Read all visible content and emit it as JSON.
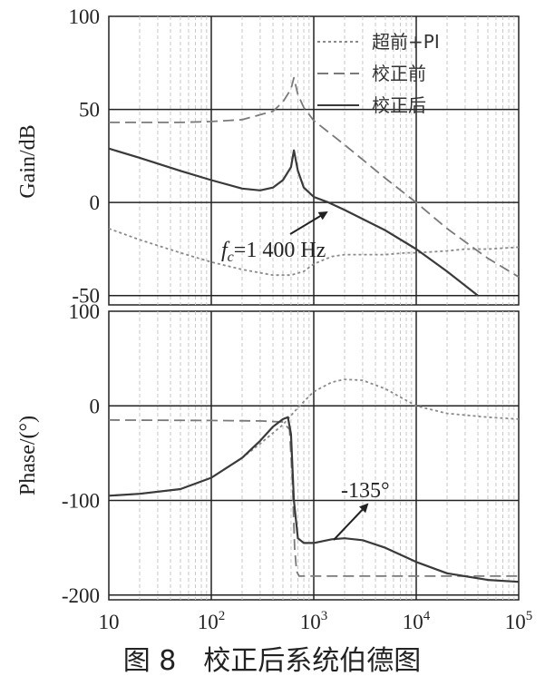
{
  "caption": "图 8　校正后系统伯德图",
  "chart_data": [
    {
      "type": "line",
      "panel": "gain",
      "ylabel": "Gain/dB",
      "xscale": "log",
      "xlim": [
        10,
        100000
      ],
      "ylim": [
        -55,
        100
      ],
      "yticks": [
        100,
        50,
        0,
        -50
      ],
      "ytick_labels": [
        "100",
        "50",
        "0",
        "-50"
      ],
      "grid": true,
      "legend_position": "top-right",
      "series": [
        {
          "name": "超前+PI",
          "style": "dotted",
          "color": "#8a8a8a",
          "x": [
            10,
            20,
            50,
            100,
            200,
            400,
            600,
            800,
            1000,
            1500,
            2000,
            3000,
            5000,
            8000,
            10000,
            20000,
            30000,
            50000,
            100000
          ],
          "y": [
            -14,
            -20,
            -27,
            -32,
            -36,
            -39,
            -39,
            -37,
            -33,
            -29,
            -28,
            -28,
            -28,
            -27,
            -27,
            -26,
            -25,
            -25,
            -24
          ]
        },
        {
          "name": "校正前",
          "style": "dashed",
          "color": "#7a7a7a",
          "x": [
            10,
            50,
            100,
            200,
            400,
            500,
            600,
            640,
            700,
            800,
            1000,
            2000,
            5000,
            10000,
            20000,
            50000,
            100000
          ],
          "y": [
            43,
            43,
            43.5,
            44.5,
            49,
            54,
            61,
            67,
            58,
            51,
            44,
            31,
            13,
            0,
            -14,
            -30,
            -40
          ]
        },
        {
          "name": "校正后",
          "style": "solid",
          "color": "#3a3a3a",
          "x": [
            10,
            20,
            50,
            100,
            200,
            300,
            400,
            500,
            600,
            640,
            700,
            800,
            1000,
            1400,
            2000,
            5000,
            10000,
            20000,
            40000
          ],
          "y": [
            29,
            24,
            17,
            12,
            7.5,
            6.5,
            8,
            12,
            19,
            28,
            17,
            8,
            3,
            0,
            -4,
            -15,
            -25,
            -37,
            -50
          ]
        }
      ],
      "annotations": [
        {
          "text_main": "f",
          "text_sub": "c",
          "text_rest": "=1 400 Hz",
          "target_x": 1400,
          "target_y": 0
        }
      ]
    },
    {
      "type": "line",
      "panel": "phase",
      "ylabel": "Phase/(°)",
      "xscale": "log",
      "xlim": [
        10,
        100000
      ],
      "ylim": [
        -205,
        100
      ],
      "yticks": [
        100,
        0,
        -100,
        -200
      ],
      "ytick_labels": [
        "100",
        "0",
        "-100",
        "-200"
      ],
      "xticks": [
        10,
        100,
        1000,
        10000,
        100000
      ],
      "xtick_labels": [
        {
          "base": "10",
          "exp": ""
        },
        {
          "base": "10",
          "exp": "2"
        },
        {
          "base": "10",
          "exp": "3"
        },
        {
          "base": "10",
          "exp": "4"
        },
        {
          "base": "10",
          "exp": "5"
        }
      ],
      "grid": true,
      "series": [
        {
          "name": "超前+PI",
          "style": "dotted",
          "color": "#8a8a8a",
          "x": [
            10,
            20,
            50,
            100,
            200,
            300,
            500,
            700,
            1000,
            1500,
            2000,
            3000,
            5000,
            10000,
            20000,
            50000,
            100000
          ],
          "y": [
            -95,
            -93,
            -88,
            -76,
            -55,
            -40,
            -20,
            -2,
            15,
            25,
            28,
            27,
            18,
            0,
            -8,
            -12,
            -14
          ]
        },
        {
          "name": "校正前",
          "style": "dashed",
          "color": "#7a7a7a",
          "x": [
            10,
            100,
            300,
            500,
            580,
            620,
            650,
            680,
            720,
            800,
            1000,
            10000,
            100000
          ],
          "y": [
            -15,
            -15.5,
            -16,
            -17,
            -25,
            -80,
            -150,
            -175,
            -180,
            -180,
            -180,
            -180,
            -180
          ]
        },
        {
          "name": "校正后",
          "style": "solid",
          "color": "#3a3a3a",
          "x": [
            10,
            20,
            50,
            100,
            200,
            300,
            400,
            500,
            560,
            600,
            640,
            700,
            800,
            1000,
            1500,
            2000,
            3000,
            5000,
            10000,
            20000,
            50000,
            100000
          ],
          "y": [
            -95,
            -93,
            -88,
            -76,
            -55,
            -37,
            -22,
            -14,
            -12,
            -30,
            -100,
            -140,
            -145,
            -145,
            -141,
            -140,
            -142,
            -150,
            -165,
            -177,
            -184,
            -186
          ]
        }
      ],
      "annotations": [
        {
          "text_main": "-135°",
          "target_x": 4500,
          "target_y": -100
        }
      ]
    }
  ]
}
